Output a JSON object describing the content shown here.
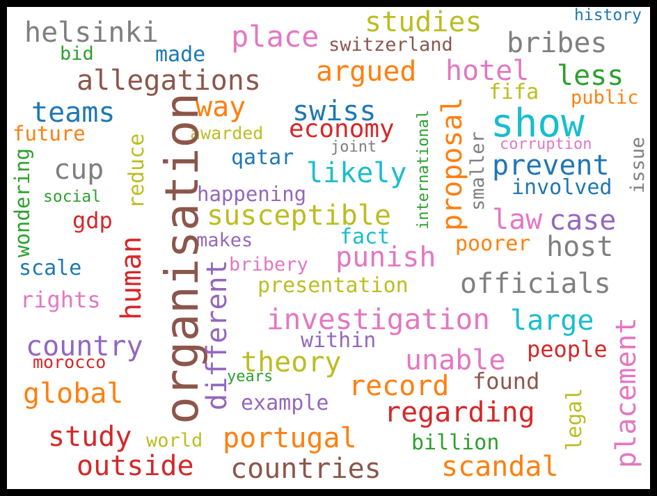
{
  "word_cloud": {
    "words": [
      {
        "text": "helsinki",
        "color": "#7f7f7f"
      },
      {
        "text": "place",
        "color": "#e377c2"
      },
      {
        "text": "studies",
        "color": "#bcbd22"
      },
      {
        "text": "history",
        "color": "#1f77b4"
      },
      {
        "text": "switzerland",
        "color": "#8c564b"
      },
      {
        "text": "bribes",
        "color": "#7f7f7f"
      },
      {
        "text": "bid",
        "color": "#2ca02c"
      },
      {
        "text": "made",
        "color": "#1f77b4"
      },
      {
        "text": "allegations",
        "color": "#8c564b"
      },
      {
        "text": "argued",
        "color": "#ff7f0e"
      },
      {
        "text": "hotel",
        "color": "#e377c2"
      },
      {
        "text": "less",
        "color": "#2ca02c"
      },
      {
        "text": "fifa",
        "color": "#bcbd22"
      },
      {
        "text": "public",
        "color": "#ff7f0e"
      },
      {
        "text": "teams",
        "color": "#1f77b4"
      },
      {
        "text": "way",
        "color": "#ff7f0e"
      },
      {
        "text": "swiss",
        "color": "#1f77b4"
      },
      {
        "text": "show",
        "color": "#17becf"
      },
      {
        "text": "future",
        "color": "#ff7f0e"
      },
      {
        "text": "awarded",
        "color": "#bcbd22"
      },
      {
        "text": "economy",
        "color": "#d62728"
      },
      {
        "text": "joint",
        "color": "#7f7f7f"
      },
      {
        "text": "corruption",
        "color": "#e377c2"
      },
      {
        "text": "qatar",
        "color": "#1f77b4"
      },
      {
        "text": "cup",
        "color": "#7f7f7f"
      },
      {
        "text": "likely",
        "color": "#17becf"
      },
      {
        "text": "prevent",
        "color": "#1f77b4"
      },
      {
        "text": "involved",
        "color": "#1f77b4"
      },
      {
        "text": "social",
        "color": "#2ca02c"
      },
      {
        "text": "happening",
        "color": "#9467bd"
      },
      {
        "text": "gdp",
        "color": "#d62728"
      },
      {
        "text": "susceptible",
        "color": "#bcbd22"
      },
      {
        "text": "law",
        "color": "#e377c2"
      },
      {
        "text": "case",
        "color": "#9467bd"
      },
      {
        "text": "makes",
        "color": "#9467bd"
      },
      {
        "text": "fact",
        "color": "#17becf"
      },
      {
        "text": "poorer",
        "color": "#ff7f0e"
      },
      {
        "text": "host",
        "color": "#7f7f7f"
      },
      {
        "text": "punish",
        "color": "#e377c2"
      },
      {
        "text": "scale",
        "color": "#1f77b4"
      },
      {
        "text": "bribery",
        "color": "#e377c2"
      },
      {
        "text": "presentation",
        "color": "#bcbd22"
      },
      {
        "text": "officials",
        "color": "#7f7f7f"
      },
      {
        "text": "rights",
        "color": "#e377c2"
      },
      {
        "text": "investigation",
        "color": "#e377c2"
      },
      {
        "text": "large",
        "color": "#17becf"
      },
      {
        "text": "within",
        "color": "#9467bd"
      },
      {
        "text": "people",
        "color": "#d62728"
      },
      {
        "text": "country",
        "color": "#9467bd"
      },
      {
        "text": "morocco",
        "color": "#d62728"
      },
      {
        "text": "theory",
        "color": "#bcbd22"
      },
      {
        "text": "unable",
        "color": "#e377c2"
      },
      {
        "text": "years",
        "color": "#2ca02c"
      },
      {
        "text": "found",
        "color": "#8c564b"
      },
      {
        "text": "record",
        "color": "#ff7f0e"
      },
      {
        "text": "global",
        "color": "#ff7f0e"
      },
      {
        "text": "example",
        "color": "#9467bd"
      },
      {
        "text": "regarding",
        "color": "#d62728"
      },
      {
        "text": "study",
        "color": "#d62728"
      },
      {
        "text": "world",
        "color": "#bcbd22"
      },
      {
        "text": "portugal",
        "color": "#ff7f0e"
      },
      {
        "text": "billion",
        "color": "#2ca02c"
      },
      {
        "text": "outside",
        "color": "#d62728"
      },
      {
        "text": "countries",
        "color": "#8c564b"
      },
      {
        "text": "scandal",
        "color": "#ff7f0e"
      },
      {
        "text": "organisation",
        "color": "#8c564b"
      },
      {
        "text": "human",
        "color": "#d62728"
      },
      {
        "text": "different",
        "color": "#9467bd"
      },
      {
        "text": "reduce",
        "color": "#bcbd22"
      },
      {
        "text": "wondering",
        "color": "#2ca02c"
      },
      {
        "text": "proposal",
        "color": "#ff7f0e"
      },
      {
        "text": "international",
        "color": "#2ca02c"
      },
      {
        "text": "smaller",
        "color": "#7f7f7f"
      },
      {
        "text": "issue",
        "color": "#7f7f7f"
      },
      {
        "text": "placement",
        "color": "#e377c2"
      },
      {
        "text": "legal",
        "color": "#bcbd22"
      }
    ]
  }
}
